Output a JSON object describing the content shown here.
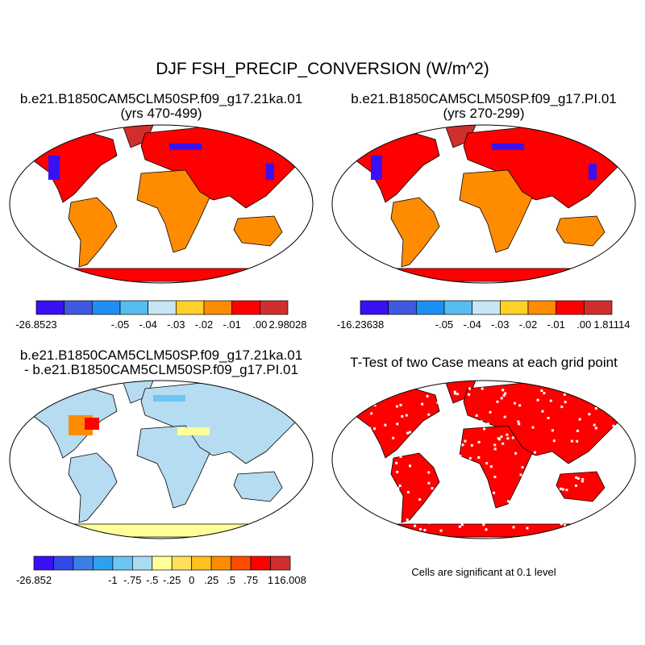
{
  "main_title": "DJF FSH_PRECIP_CONVERSION (W/m^2)",
  "panels": [
    {
      "id": "case1",
      "title": "b.e21.B1850CAM5CLM50SP.f09_g17.21ka.01",
      "subtitle": "(yrs 470-499)",
      "colorbar": {
        "colors": [
          "#3a10f5",
          "#3f5ae0",
          "#1e8ff5",
          "#55bdf0",
          "#c6e6f5",
          "#ffd028",
          "#ff8c00",
          "#ff0000",
          "#d12e2e"
        ],
        "labels": [
          "-26.8523",
          "-.05",
          "-.04",
          "-.03",
          "-.02",
          "-.01",
          ".00",
          "2.98028"
        ]
      }
    },
    {
      "id": "case2",
      "title": "b.e21.B1850CAM5CLM50SP.f09_g17.PI.01",
      "subtitle": "(yrs 270-299)",
      "colorbar": {
        "colors": [
          "#3a10f5",
          "#3f5ae0",
          "#1e8ff5",
          "#55bdf0",
          "#c6e6f5",
          "#ffd028",
          "#ff8c00",
          "#ff0000",
          "#d12e2e"
        ],
        "labels": [
          "-16.23638",
          "-.05",
          "-.04",
          "-.03",
          "-.02",
          "-.01",
          ".00",
          "1.81114"
        ]
      }
    },
    {
      "id": "diff",
      "title": "b.e21.B1850CAM5CLM50SP.f09_g17.21ka.01",
      "subtitle": "- b.e21.B1850CAM5CLM50SP.f09_g17.PI.01",
      "colorbar": {
        "colors": [
          "#3a10f5",
          "#3348e8",
          "#3b7ee8",
          "#2ea0f0",
          "#6cc6f5",
          "#a8dcf0",
          "#ffff99",
          "#ffe05a",
          "#ffc020",
          "#ff8c00",
          "#ff4a00",
          "#ff0000",
          "#d12e2e"
        ],
        "labels": [
          "-26.852",
          "-1",
          "-.75",
          "-.5",
          "-.25",
          "0",
          ".25",
          ".5",
          ".75",
          "1",
          "16.008"
        ]
      }
    },
    {
      "id": "ttest",
      "title": "T-Test of two Case means at each grid point",
      "subtitle": "",
      "note": "Cells are significant at 0.1 level"
    }
  ],
  "land_colors": {
    "case_land": "#ff0000",
    "case_south_america": "#ff8c00",
    "case_hotspot": "#3a10f5",
    "diff_land": "#b5dcf0",
    "diff_yellow": "#ffff99",
    "ttest_land": "#ff0000"
  }
}
